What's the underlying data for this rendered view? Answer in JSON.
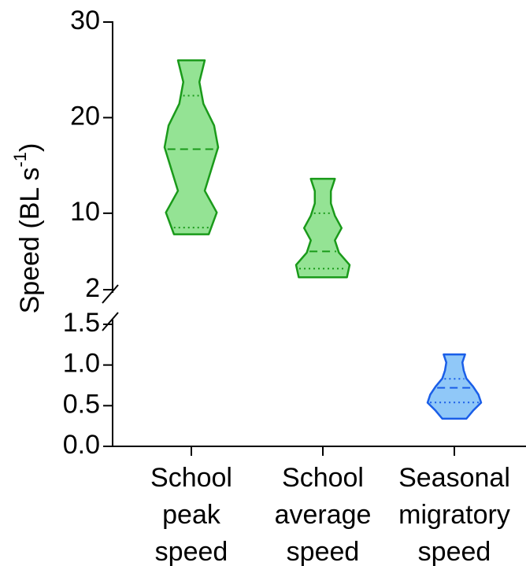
{
  "chart_data": {
    "type": "violin",
    "ylabel": [
      "Speed (BL s",
      "-1",
      ")"
    ],
    "categories": [
      [
        "School",
        "peak",
        "speed"
      ],
      [
        "School",
        "average",
        "speed"
      ],
      [
        "Seasonal",
        "migratory",
        "speed"
      ]
    ],
    "panels": [
      {
        "ylim": [
          2,
          30
        ],
        "yticks": [
          2,
          10,
          20,
          30
        ]
      },
      {
        "ylim": [
          0,
          1.5
        ],
        "yticks": [
          {
            "value": 0,
            "label": "0.0"
          },
          0.5,
          {
            "value": 1,
            "label": "1.0"
          },
          1.5
        ]
      }
    ],
    "violins": [
      {
        "panel": 0,
        "color": "#94e394",
        "edge": "#1a9a1a",
        "min": 7.8,
        "q1": 8.5,
        "median": 16.7,
        "q3": 22.3,
        "max": 26,
        "shape": [
          0.65,
          0.95,
          0.5,
          0.75,
          1.0,
          0.85,
          0.45,
          0.3,
          0.5
        ]
      },
      {
        "panel": 0,
        "color": "#94e394",
        "edge": "#1a9a1a",
        "min": 3.3,
        "q1": 4.2,
        "median": 6.0,
        "q3": 10.0,
        "max": 13.6,
        "shape": [
          0.9,
          1.0,
          0.6,
          0.45,
          0.7,
          0.45,
          0.3,
          0.3,
          0.45
        ]
      },
      {
        "panel": 1,
        "color": "#90c8f8",
        "edge": "#1a5ee8",
        "min": 0.34,
        "q1": 0.54,
        "median": 0.72,
        "q3": 0.83,
        "max": 1.13,
        "shape": [
          0.45,
          0.7,
          1.0,
          0.9,
          0.7,
          0.45,
          0.35,
          0.3,
          0.4
        ]
      }
    ]
  }
}
